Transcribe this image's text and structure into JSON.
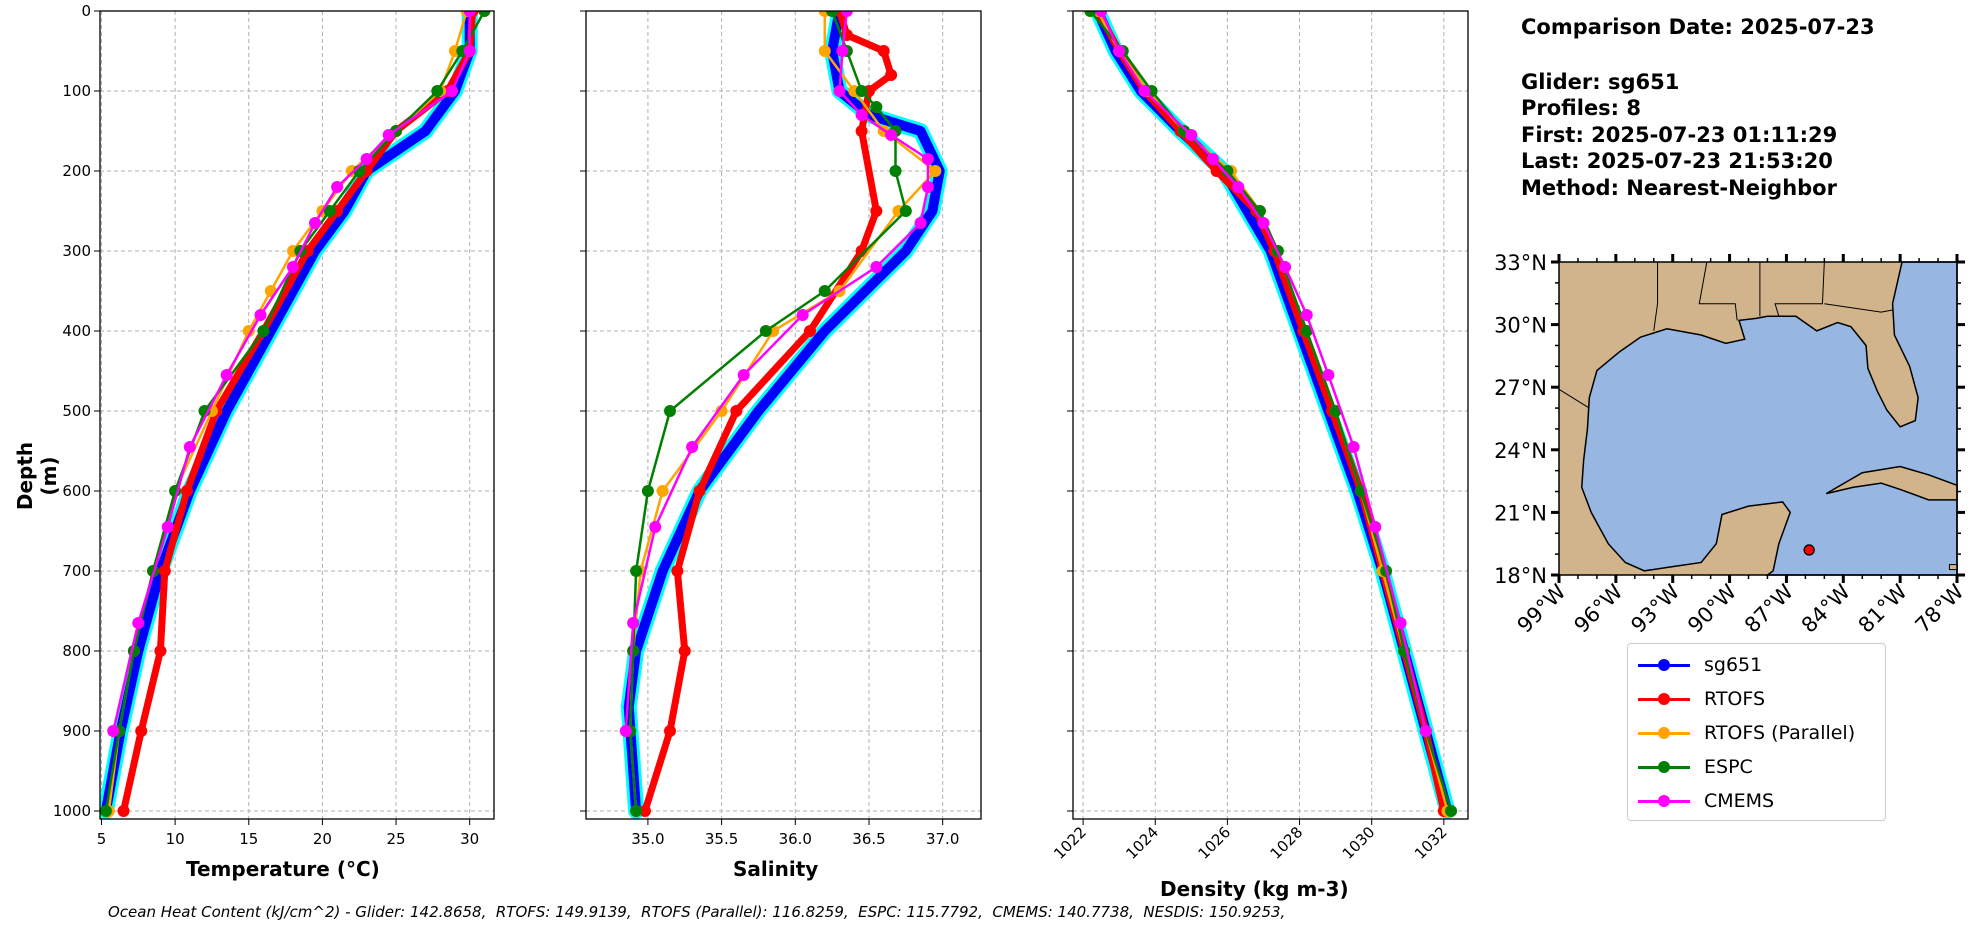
{
  "info": {
    "date": "Comparison Date: 2025-07-23",
    "glider": "Glider: sg651",
    "profiles": "Profiles: 8",
    "first": "First: 2025-07-23 01:11:29",
    "last": "Last: 2025-07-23 21:53:20",
    "method": "Method: Nearest-Neighbor"
  },
  "ohc": "Ocean Heat Content (kJ/cm^2) - Glider: 142.8658,  RTOFS: 149.9139,  RTOFS (Parallel): 116.8259,  ESPC: 115.7792,  CMEMS: 140.7738,  NESDIS: 150.9253,",
  "legend": [
    {
      "name": "sg651",
      "color": "#0000ff"
    },
    {
      "name": "RTOFS",
      "color": "#ff0000"
    },
    {
      "name": "RTOFS (Parallel)",
      "color": "#ffa500"
    },
    {
      "name": "ESPC",
      "color": "#008000"
    },
    {
      "name": "CMEMS",
      "color": "#ff00ff"
    }
  ],
  "chart_data": [
    {
      "type": "line",
      "title": "",
      "xlabel": "Temperature (°C)",
      "ylabel": "Depth (m)",
      "xlim": [
        4.9,
        31.65
      ],
      "ylim": [
        1010,
        0
      ],
      "grid": true,
      "xticks": [
        5,
        10,
        15,
        20,
        25,
        30
      ],
      "yticks": [
        0,
        100,
        200,
        300,
        400,
        500,
        600,
        700,
        800,
        900,
        1000
      ],
      "series": [
        {
          "name": "sg651",
          "depth": [
            0,
            50,
            100,
            150,
            200,
            250,
            300,
            400,
            500,
            600,
            700,
            800,
            900,
            1000
          ],
          "values": [
            30,
            30,
            29,
            27,
            23,
            21.5,
            19.5,
            16.5,
            13.5,
            11,
            9,
            7.5,
            6.3,
            5.3
          ]
        },
        {
          "name": "RTOFS",
          "depth": [
            0,
            50,
            100,
            150,
            200,
            250,
            300,
            400,
            500,
            600,
            700,
            800,
            900,
            1000
          ],
          "values": [
            30.2,
            30,
            28.5,
            25,
            23,
            21,
            19,
            16,
            12.8,
            10.8,
            9.3,
            9,
            7.7,
            6.5
          ]
        },
        {
          "name": "RTOFS (Parallel)",
          "depth": [
            0,
            50,
            100,
            150,
            200,
            250,
            300,
            350,
            400,
            500,
            600,
            700,
            800,
            900,
            1000
          ],
          "values": [
            29.8,
            29,
            28,
            25,
            22,
            20,
            18,
            16.5,
            15,
            12.5,
            10,
            8.5,
            7.2,
            6.2,
            5.5
          ]
        },
        {
          "name": "ESPC",
          "depth": [
            0,
            50,
            100,
            150,
            200,
            250,
            300,
            400,
            500,
            600,
            700,
            800,
            900,
            1000
          ],
          "values": [
            31,
            29.5,
            27.8,
            25,
            22.5,
            20.5,
            18.5,
            16,
            12,
            10,
            8.5,
            7.2,
            6.2,
            5.3
          ]
        },
        {
          "name": "CMEMS",
          "depth": [
            0,
            50,
            100,
            155,
            185,
            220,
            265,
            320,
            380,
            455,
            545,
            645,
            765,
            900
          ],
          "values": [
            30,
            30,
            28.8,
            24.5,
            23,
            21,
            19.5,
            18,
            15.8,
            13.5,
            11,
            9.5,
            7.5,
            5.8
          ]
        }
      ]
    },
    {
      "type": "line",
      "title": "",
      "xlabel": "Salinity",
      "ylabel": "",
      "xlim": [
        34.58,
        37.26
      ],
      "ylim": [
        1010,
        0
      ],
      "grid": true,
      "xticks": [
        35.0,
        35.5,
        36.0,
        36.5,
        37.0
      ],
      "xtick_labels": [
        "35.0",
        "35.5",
        "36.0",
        "36.5",
        "37.0"
      ],
      "yticks": [
        0,
        100,
        200,
        300,
        400,
        500,
        600,
        700,
        800,
        900,
        1000
      ],
      "series": [
        {
          "name": "sg651",
          "depth": [
            0,
            50,
            100,
            130,
            150,
            200,
            250,
            300,
            400,
            500,
            600,
            700,
            800,
            870,
            1000
          ],
          "values": [
            36.3,
            36.25,
            36.3,
            36.5,
            36.85,
            36.98,
            36.93,
            36.75,
            36.2,
            35.75,
            35.35,
            35.1,
            34.92,
            34.87,
            34.92
          ]
        },
        {
          "name": "RTOFS",
          "depth": [
            0,
            30,
            50,
            80,
            100,
            150,
            250,
            300,
            400,
            500,
            600,
            700,
            800,
            900,
            1000
          ],
          "values": [
            36.3,
            36.35,
            36.6,
            36.65,
            36.5,
            36.45,
            36.55,
            36.45,
            36.1,
            35.6,
            35.35,
            35.2,
            35.25,
            35.15,
            34.98
          ]
        },
        {
          "name": "RTOFS (Parallel)",
          "depth": [
            0,
            50,
            100,
            150,
            200,
            250,
            350,
            400,
            500,
            600,
            700,
            800,
            900,
            1000
          ],
          "values": [
            36.2,
            36.2,
            36.4,
            36.6,
            36.95,
            36.7,
            36.3,
            35.85,
            35.5,
            35.1,
            34.95,
            34.9,
            34.88,
            34.92
          ]
        },
        {
          "name": "ESPC",
          "depth": [
            0,
            50,
            100,
            120,
            150,
            200,
            250,
            350,
            400,
            500,
            600,
            700,
            800,
            900,
            1000
          ],
          "values": [
            36.25,
            36.35,
            36.45,
            36.55,
            36.68,
            36.68,
            36.75,
            36.2,
            35.8,
            35.15,
            35.0,
            34.92,
            34.9,
            34.88,
            34.92
          ]
        },
        {
          "name": "CMEMS",
          "depth": [
            0,
            50,
            100,
            130,
            155,
            185,
            220,
            265,
            320,
            380,
            455,
            545,
            645,
            765,
            900
          ],
          "values": [
            36.35,
            36.32,
            36.3,
            36.45,
            36.65,
            36.9,
            36.9,
            36.85,
            36.55,
            36.05,
            35.65,
            35.3,
            35.05,
            34.9,
            34.85
          ]
        }
      ]
    },
    {
      "type": "line",
      "title": "",
      "xlabel": "Density (kg m-3)",
      "ylabel": "",
      "xlim": [
        1021.72,
        1032.67
      ],
      "ylim": [
        1010,
        0
      ],
      "grid": true,
      "xticks": [
        1022,
        1024,
        1026,
        1028,
        1030,
        1032
      ],
      "yticks": [
        0,
        100,
        200,
        300,
        400,
        500,
        600,
        700,
        800,
        900,
        1000
      ],
      "series": [
        {
          "name": "sg651",
          "depth": [
            0,
            50,
            100,
            150,
            200,
            300,
            400,
            500,
            600,
            700,
            800,
            900,
            1000
          ],
          "values": [
            1022.4,
            1022.9,
            1023.6,
            1024.7,
            1025.9,
            1027.2,
            1028.0,
            1028.8,
            1029.6,
            1030.3,
            1030.9,
            1031.5,
            1032.1
          ]
        },
        {
          "name": "RTOFS",
          "depth": [
            0,
            50,
            100,
            150,
            200,
            250,
            300,
            400,
            500,
            600,
            700,
            800,
            900,
            1000
          ],
          "values": [
            1022.4,
            1023.0,
            1023.7,
            1024.7,
            1025.7,
            1026.8,
            1027.3,
            1028.1,
            1028.9,
            1029.7,
            1030.3,
            1030.9,
            1031.5,
            1032.0
          ]
        },
        {
          "name": "RTOFS (Parallel)",
          "depth": [
            0,
            50,
            100,
            150,
            200,
            250,
            300,
            400,
            500,
            600,
            700,
            800,
            900,
            1000
          ],
          "values": [
            1022.4,
            1023.0,
            1023.8,
            1024.8,
            1026.1,
            1026.9,
            1027.4,
            1028.2,
            1029.0,
            1029.7,
            1030.3,
            1030.9,
            1031.5,
            1032.1
          ]
        },
        {
          "name": "ESPC",
          "depth": [
            0,
            50,
            100,
            150,
            200,
            250,
            300,
            400,
            500,
            600,
            700,
            800,
            900,
            1000
          ],
          "values": [
            1022.2,
            1023.1,
            1023.9,
            1024.8,
            1026.0,
            1026.9,
            1027.4,
            1028.2,
            1029.0,
            1029.7,
            1030.4,
            1030.9,
            1031.5,
            1032.2
          ]
        },
        {
          "name": "CMEMS",
          "depth": [
            0,
            50,
            100,
            155,
            185,
            220,
            265,
            320,
            380,
            455,
            545,
            645,
            765,
            900
          ],
          "values": [
            1022.5,
            1023.0,
            1023.7,
            1025.0,
            1025.6,
            1026.3,
            1027.0,
            1027.6,
            1028.2,
            1028.8,
            1029.5,
            1030.1,
            1030.8,
            1031.5
          ]
        }
      ]
    },
    {
      "type": "map",
      "xlim": [
        -99,
        -78
      ],
      "ylim": [
        18,
        33
      ],
      "lat_ticks": [
        18,
        21,
        24,
        27,
        30,
        33
      ],
      "lat_labels": [
        "18°N",
        "21°N",
        "24°N",
        "27°N",
        "30°N",
        "33°N"
      ],
      "lon_ticks": [
        -99,
        -96,
        -93,
        -90,
        -87,
        -84,
        -81,
        -78
      ],
      "lon_labels": [
        "99°W",
        "96°W",
        "93°W",
        "90°W",
        "87°W",
        "84°W",
        "81°W",
        "78°W"
      ],
      "glider_position": {
        "lon": -85.8,
        "lat": 19.2
      },
      "land_color": "#d2b48c",
      "water_color": "#97b6e1"
    }
  ]
}
